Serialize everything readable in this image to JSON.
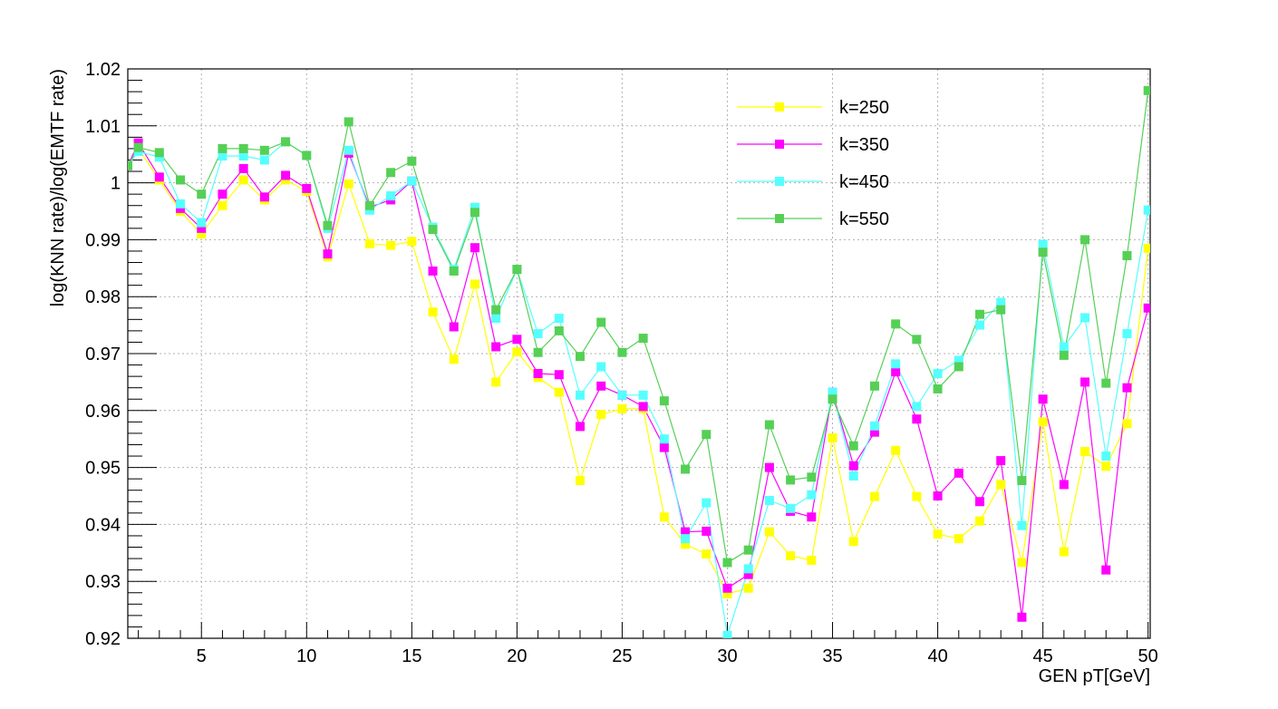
{
  "chart_data": {
    "type": "line",
    "title": "",
    "xlabel": "GEN pT[GeV]",
    "ylabel": "log(KNN rate)/log(EMTF rate)",
    "xlim": [
      1.5,
      50.1
    ],
    "ylim": [
      0.92,
      1.02
    ],
    "x_ticks": [
      5,
      10,
      15,
      20,
      25,
      30,
      35,
      40,
      45,
      50
    ],
    "y_ticks": [
      0.92,
      0.93,
      0.94,
      0.95,
      0.96,
      0.97,
      0.98,
      0.99,
      1.0,
      1.01,
      1.02
    ],
    "y_tick_labels": [
      "0.92",
      "0.93",
      "0.94",
      "0.95",
      "0.96",
      "0.97",
      "0.98",
      "0.99",
      "1",
      "1.01",
      "1.02"
    ],
    "grid": true,
    "legend_position": "top-right",
    "x": [
      1.5,
      2,
      3,
      4,
      5,
      6,
      7,
      8,
      9,
      10,
      11,
      12,
      13,
      14,
      15,
      16,
      17,
      18,
      19,
      20,
      21,
      22,
      23,
      24,
      25,
      26,
      27,
      28,
      29,
      30,
      31,
      32,
      33,
      34,
      35,
      36,
      37,
      38,
      39,
      40,
      41,
      42,
      43,
      44,
      45,
      46,
      47,
      48,
      49,
      50
    ],
    "series": [
      {
        "name": "k=250",
        "color": "#ffff00",
        "values": [
          1.003,
          1.006,
          1.0005,
          0.995,
          0.991,
          0.996,
          1.0005,
          0.997,
          1.0005,
          0.9985,
          0.987,
          0.9998,
          0.9893,
          0.989,
          0.9897,
          0.9773,
          0.969,
          0.9822,
          0.965,
          0.9703,
          0.9658,
          0.9632,
          0.9477,
          0.9593,
          0.9603,
          0.9603,
          0.9413,
          0.9365,
          0.9348,
          0.9278,
          0.9288,
          0.9387,
          0.9345,
          0.9337,
          0.9552,
          0.937,
          0.9449,
          0.953,
          0.9449,
          0.9383,
          0.9375,
          0.9406,
          0.947,
          0.9333,
          0.958,
          0.9352,
          0.9528,
          0.9502,
          0.9577,
          0.9885
        ]
      },
      {
        "name": "k=350",
        "color": "#ff00ff",
        "values": [
          1.003,
          1.007,
          1.001,
          0.9955,
          0.992,
          0.998,
          1.0025,
          0.9975,
          1.0013,
          0.999,
          0.9875,
          1.0052,
          0.9957,
          0.997,
          1.0003,
          0.9845,
          0.9747,
          0.9886,
          0.9712,
          0.9725,
          0.9665,
          0.9663,
          0.9572,
          0.9643,
          0.9627,
          0.9607,
          0.9535,
          0.9387,
          0.9388,
          0.9288,
          0.9312,
          0.95,
          0.9423,
          0.9413,
          0.9632,
          0.9503,
          0.9562,
          0.9668,
          0.9585,
          0.945,
          0.949,
          0.944,
          0.9512,
          0.9237,
          0.962,
          0.947,
          0.965,
          0.932,
          0.964,
          0.978
        ]
      },
      {
        "name": "k=450",
        "color": "#55ffff",
        "values": [
          1.003,
          1.0055,
          1.0045,
          0.9963,
          0.993,
          1.0047,
          1.0047,
          1.004,
          1.0072,
          1.0048,
          0.992,
          1.0057,
          0.9952,
          0.9977,
          1.0003,
          0.9922,
          0.9848,
          0.9957,
          0.9762,
          0.9848,
          0.9735,
          0.9762,
          0.9627,
          0.9677,
          0.9627,
          0.9627,
          0.955,
          0.9375,
          0.9438,
          0.9205,
          0.9322,
          0.9442,
          0.9428,
          0.9452,
          0.9632,
          0.9485,
          0.9573,
          0.9682,
          0.9607,
          0.9665,
          0.9688,
          0.975,
          0.979,
          0.9398,
          0.9892,
          0.9712,
          0.9763,
          0.952,
          0.9735,
          0.9952
        ]
      },
      {
        "name": "k=550",
        "color": "#55d055",
        "values": [
          1.003,
          1.0062,
          1.0053,
          1.0005,
          0.998,
          1.006,
          1.006,
          1.0057,
          1.0072,
          1.0048,
          0.9925,
          1.0107,
          0.996,
          1.0018,
          1.0038,
          0.9918,
          0.9845,
          0.9948,
          0.9777,
          0.9848,
          0.9702,
          0.974,
          0.9695,
          0.9755,
          0.9702,
          0.9727,
          0.9617,
          0.9497,
          0.9558,
          0.9333,
          0.9355,
          0.9575,
          0.9478,
          0.9483,
          0.962,
          0.9538,
          0.9643,
          0.9752,
          0.9725,
          0.9638,
          0.9677,
          0.9769,
          0.9777,
          0.9477,
          0.9878,
          0.9697,
          0.99,
          0.9648,
          0.9872,
          1.0162
        ]
      }
    ]
  }
}
